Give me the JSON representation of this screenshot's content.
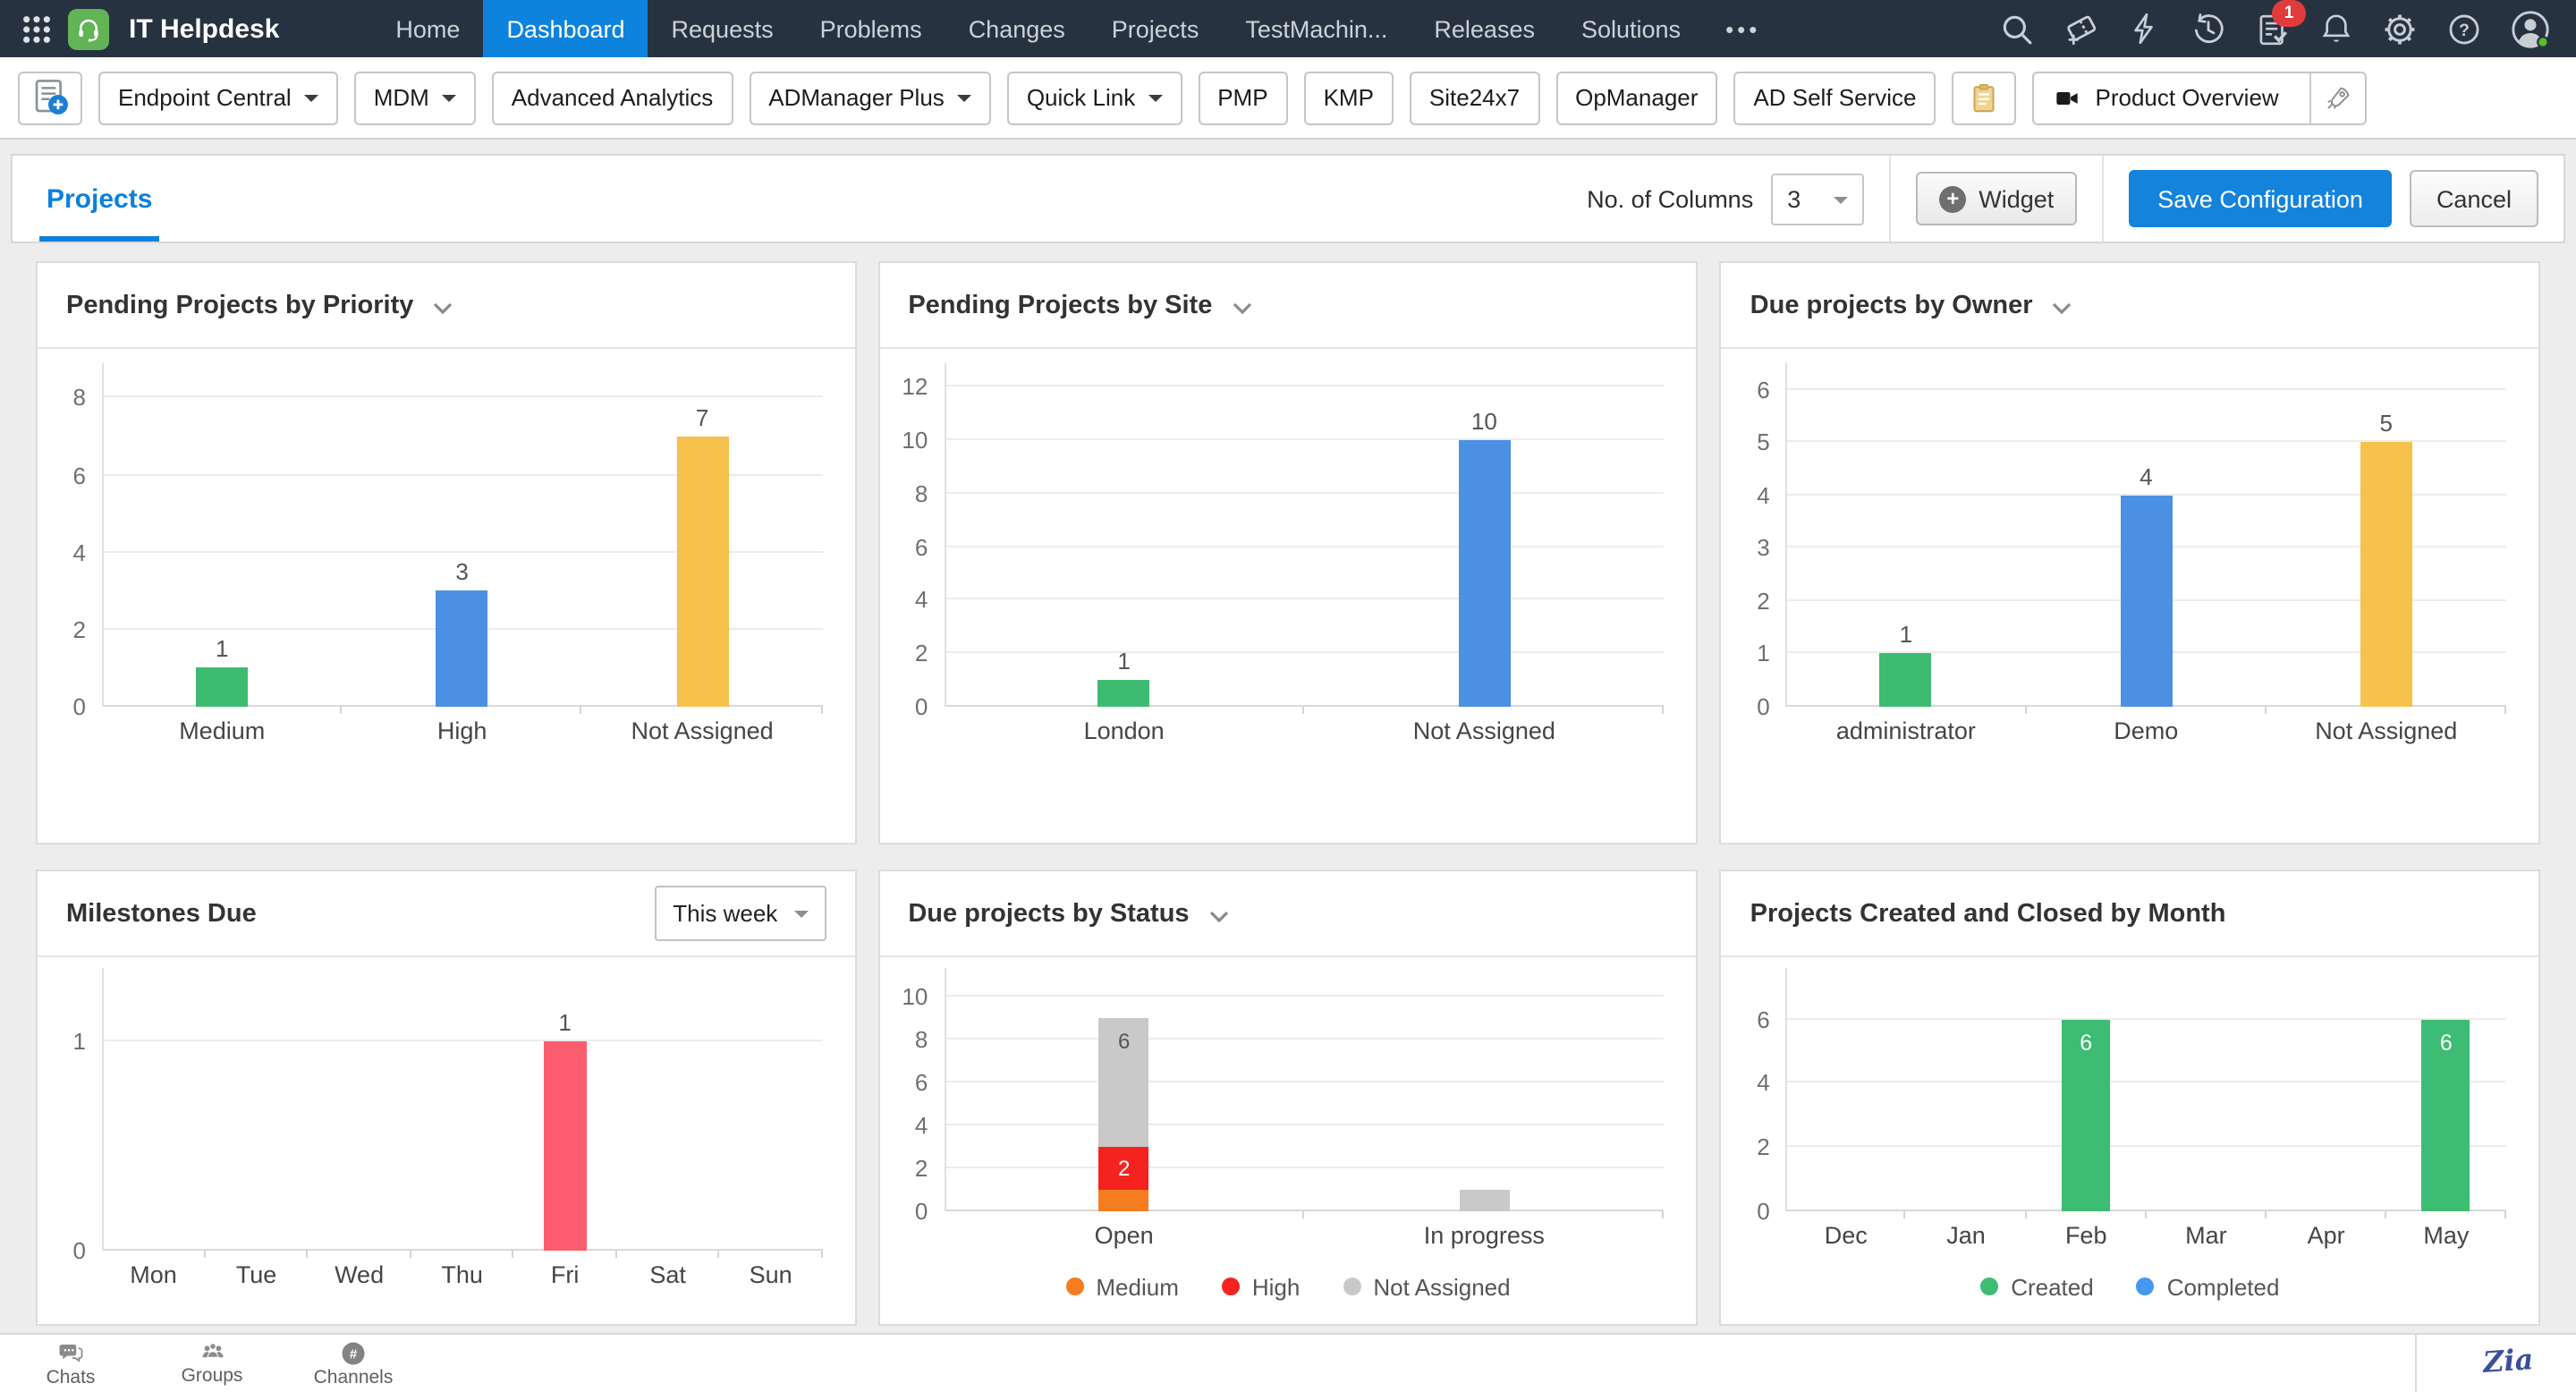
{
  "theme": {
    "navbar_bg": "#273240",
    "active_nav_bg": "#0d83de",
    "accent_blue": "#1383dc",
    "tab_blue": "#0c80dd",
    "logo_green": "#62b457",
    "badge_red": "#e23b3b",
    "page_bg": "#ededed"
  },
  "navbar": {
    "product": "IT Helpdesk",
    "items": [
      {
        "label": "Home",
        "active": false
      },
      {
        "label": "Dashboard",
        "active": true
      },
      {
        "label": "Requests",
        "active": false
      },
      {
        "label": "Problems",
        "active": false
      },
      {
        "label": "Changes",
        "active": false
      },
      {
        "label": "Projects",
        "active": false
      },
      {
        "label": "TestMachin...",
        "active": false
      },
      {
        "label": "Releases",
        "active": false
      },
      {
        "label": "Solutions",
        "active": false
      }
    ],
    "more_dots": "•••",
    "badge_count": "1",
    "right_icons": [
      "search-icon",
      "add-ticket-icon",
      "quick-actions-icon",
      "history-icon",
      "approvals-icon",
      "notifications-icon",
      "settings-icon",
      "help-icon",
      "user-avatar"
    ]
  },
  "toolbar": {
    "buttons": [
      {
        "label": "Endpoint Central",
        "caret": true
      },
      {
        "label": "MDM",
        "caret": true
      },
      {
        "label": "Advanced Analytics",
        "caret": false
      },
      {
        "label": "ADManager Plus",
        "caret": true
      },
      {
        "label": "Quick Link",
        "caret": true
      },
      {
        "label": "PMP",
        "caret": false
      },
      {
        "label": "KMP",
        "caret": false
      },
      {
        "label": "Site24x7",
        "caret": false
      },
      {
        "label": "OpManager",
        "caret": false
      },
      {
        "label": "AD Self Service",
        "caret": false
      }
    ],
    "product_overview_label": "Product Overview",
    "icon_buttons": [
      "add-document-icon",
      "clipboard-icon",
      "video-camera-icon",
      "rocket-icon"
    ]
  },
  "tabbar": {
    "tab": "Projects",
    "columns_label": "No. of Columns",
    "columns_value": "3",
    "widget_label": "Widget",
    "save_label": "Save Configuration",
    "cancel_label": "Cancel"
  },
  "chart_data": [
    {
      "type": "bar",
      "title": "Pending Projects by Priority",
      "menu": true,
      "categories": [
        "Medium",
        "High",
        "Not Assigned"
      ],
      "values": [
        1,
        3,
        7
      ],
      "bar_colors": [
        "#3dbb71",
        "#4b90e2",
        "#f7c24c"
      ],
      "yticks": [
        0,
        2,
        4,
        6,
        8
      ],
      "ylim": [
        0,
        8.9
      ],
      "grid": true
    },
    {
      "type": "bar",
      "title": "Pending Projects by Site",
      "menu": true,
      "categories": [
        "London",
        "Not Assigned"
      ],
      "values": [
        1,
        10
      ],
      "bar_colors": [
        "#3dbb71",
        "#4b90e2"
      ],
      "yticks": [
        0,
        2,
        4,
        6,
        8,
        10,
        12
      ],
      "ylim": [
        0,
        12.9
      ],
      "grid": true
    },
    {
      "type": "bar",
      "title": "Due projects by Owner",
      "menu": true,
      "categories": [
        "administrator",
        "Demo",
        "Not Assigned"
      ],
      "values": [
        1,
        4,
        5
      ],
      "bar_colors": [
        "#3dbb71",
        "#4b90e2",
        "#f7c24c"
      ],
      "yticks": [
        0,
        1,
        2,
        3,
        4,
        5,
        6
      ],
      "ylim": [
        0,
        6.5
      ],
      "grid": true
    },
    {
      "type": "bar",
      "title": "Milestones Due",
      "menu": false,
      "dropdown": "This week",
      "categories": [
        "Mon",
        "Tue",
        "Wed",
        "Thu",
        "Fri",
        "Sat",
        "Sun"
      ],
      "values": [
        0,
        0,
        0,
        0,
        1,
        0,
        0
      ],
      "bar_color": "#fb5d6e",
      "yticks": [
        0,
        1
      ],
      "ylim": [
        0,
        1.35
      ],
      "grid": true
    },
    {
      "type": "bar",
      "stack": true,
      "title": "Due projects by Status",
      "menu": true,
      "categories": [
        "Open",
        "In progress"
      ],
      "series": [
        {
          "name": "Medium",
          "color": "#f57d20",
          "values": [
            1,
            0
          ],
          "label_color": "#ffffff"
        },
        {
          "name": "High",
          "color": "#f5231f",
          "values": [
            2,
            0
          ],
          "label_color": "#ffffff"
        },
        {
          "name": "Not Assigned",
          "color": "#c9c9c9",
          "values": [
            6,
            1
          ],
          "label_color": "#555555"
        }
      ],
      "label_min": 2,
      "legend": true,
      "legend_position": "bottom",
      "yticks": [
        0,
        2,
        4,
        6,
        8,
        10
      ],
      "ylim": [
        0,
        11.3
      ],
      "grid": true
    },
    {
      "type": "bar",
      "title": "Projects Created and Closed by Month",
      "menu": false,
      "categories": [
        "Dec",
        "Jan",
        "Feb",
        "Mar",
        "Apr",
        "May"
      ],
      "series": [
        {
          "name": "Created",
          "color": "#3dbd73",
          "values": [
            0,
            0,
            6,
            0,
            0,
            6
          ]
        },
        {
          "name": "Completed",
          "color": "#4598f0",
          "values": [
            0,
            0,
            0,
            0,
            0,
            0
          ]
        }
      ],
      "value_labels": "inside",
      "legend": true,
      "legend_position": "bottom",
      "yticks": [
        0,
        2,
        4,
        6
      ],
      "ylim": [
        0,
        7.6
      ],
      "grid": true
    }
  ],
  "footer": {
    "items": [
      "Chats",
      "Groups",
      "Channels"
    ],
    "zia": "Zia"
  }
}
